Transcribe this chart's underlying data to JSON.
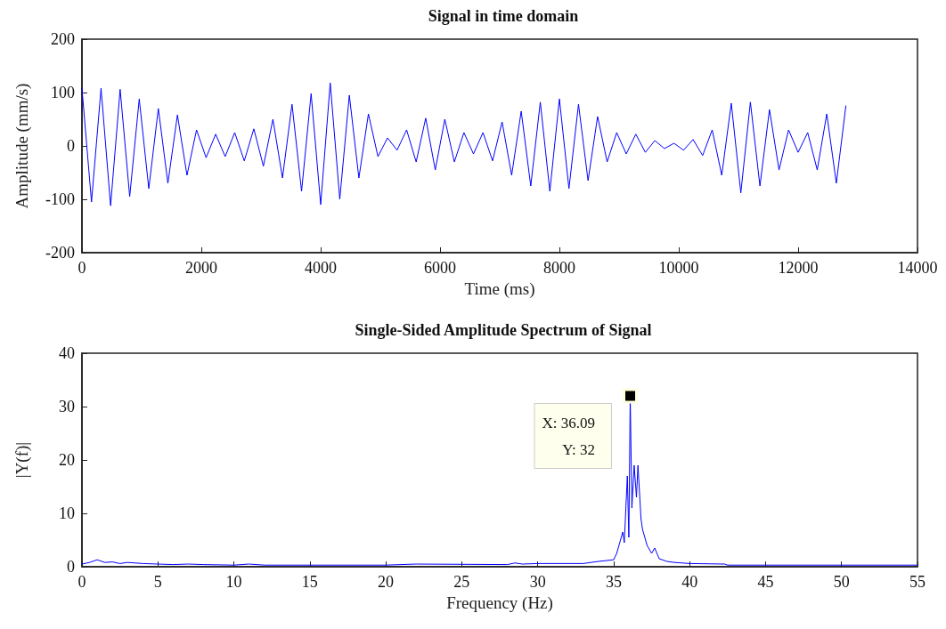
{
  "chart_data": [
    {
      "type": "line",
      "title": "Signal in time domain",
      "xlabel": "Time (ms)",
      "ylabel": "Amplitude (mm/s)",
      "xlim": [
        0,
        14000
      ],
      "xticks": [
        0,
        2000,
        4000,
        6000,
        8000,
        10000,
        12000,
        14000
      ],
      "ylim": [
        -200,
        200
      ],
      "yticks": [
        -200,
        -100,
        0,
        100,
        200
      ],
      "grid": false,
      "marker": "none",
      "line_style": "solid",
      "x": [
        0,
        160,
        320,
        480,
        640,
        800,
        960,
        1120,
        1280,
        1440,
        1600,
        1760,
        1920,
        2080,
        2240,
        2400,
        2560,
        2720,
        2880,
        3040,
        3200,
        3360,
        3520,
        3680,
        3840,
        4000,
        4160,
        4320,
        4480,
        4640,
        4800,
        4960,
        5120,
        5280,
        5440,
        5600,
        5760,
        5920,
        6080,
        6240,
        6400,
        6560,
        6720,
        6880,
        7040,
        7200,
        7360,
        7520,
        7680,
        7840,
        8000,
        8160,
        8320,
        8480,
        8640,
        8800,
        8960,
        9120,
        9280,
        9440,
        9600,
        9760,
        9920,
        10080,
        10240,
        10400,
        10560,
        10720,
        10880,
        11040,
        11200,
        11360,
        11520,
        11680,
        11840,
        12000,
        12160,
        12320,
        12480,
        12640,
        12800
      ],
      "series": [
        {
          "color": "#0000ff",
          "values": [
            108,
            -105,
            108,
            -112,
            106,
            -95,
            88,
            -80,
            70,
            -70,
            58,
            -55,
            30,
            -22,
            22,
            -20,
            25,
            -28,
            32,
            -38,
            50,
            -60,
            78,
            -85,
            98,
            -110,
            118,
            -100,
            95,
            -60,
            60,
            -20,
            15,
            -8,
            30,
            -30,
            52,
            -45,
            50,
            -30,
            25,
            -15,
            25,
            -28,
            45,
            -55,
            65,
            -75,
            82,
            -85,
            88,
            -80,
            78,
            -65,
            55,
            -30,
            25,
            -15,
            22,
            -12,
            10,
            -5,
            5,
            -8,
            12,
            -18,
            30,
            -55,
            80,
            -88,
            82,
            -75,
            68,
            -45,
            30,
            -12,
            25,
            -45,
            60,
            -70,
            75
          ]
        }
      ]
    },
    {
      "type": "line",
      "title": "Single-Sided Amplitude Spectrum of Signal",
      "xlabel": "Frequency (Hz)",
      "ylabel": "|Y(f)|",
      "xlim": [
        0,
        55
      ],
      "xticks": [
        0,
        5,
        10,
        15,
        20,
        25,
        30,
        35,
        40,
        45,
        50,
        55
      ],
      "ylim": [
        0,
        40
      ],
      "yticks": [
        0,
        10,
        20,
        30,
        40
      ],
      "grid": false,
      "marker": "none",
      "line_style": "solid",
      "annotations": [
        {
          "text": "X: 36.09\nY: 32",
          "x": 36.09,
          "y": 32
        }
      ],
      "x": [
        0,
        0.5,
        1,
        1.5,
        2,
        2.5,
        3,
        4,
        5,
        6,
        7,
        8,
        10,
        11,
        12,
        20,
        22,
        28,
        28.5,
        29,
        30,
        33,
        34,
        35,
        35.2,
        35.4,
        35.6,
        35.7,
        35.9,
        36,
        36.09,
        36.2,
        36.35,
        36.5,
        36.6,
        36.8,
        36.9,
        37.2,
        37.5,
        37.7,
        38,
        38.5,
        39,
        40,
        42.3,
        42.5,
        55
      ],
      "series": [
        {
          "color": "#0000ff",
          "values": [
            0.5,
            0.8,
            1.3,
            0.8,
            0.9,
            0.6,
            0.8,
            0.6,
            0.5,
            0.4,
            0.5,
            0.4,
            0.3,
            0.5,
            0.3,
            0.3,
            0.5,
            0.4,
            0.7,
            0.5,
            0.6,
            0.6,
            1.0,
            1.3,
            2.5,
            4.5,
            6.5,
            4.5,
            17,
            5.5,
            32,
            11,
            19,
            13,
            19,
            9,
            7,
            4,
            2.5,
            3.5,
            1.5,
            1.0,
            0.8,
            0.6,
            0.5,
            0.3,
            0.3
          ]
        }
      ]
    }
  ]
}
